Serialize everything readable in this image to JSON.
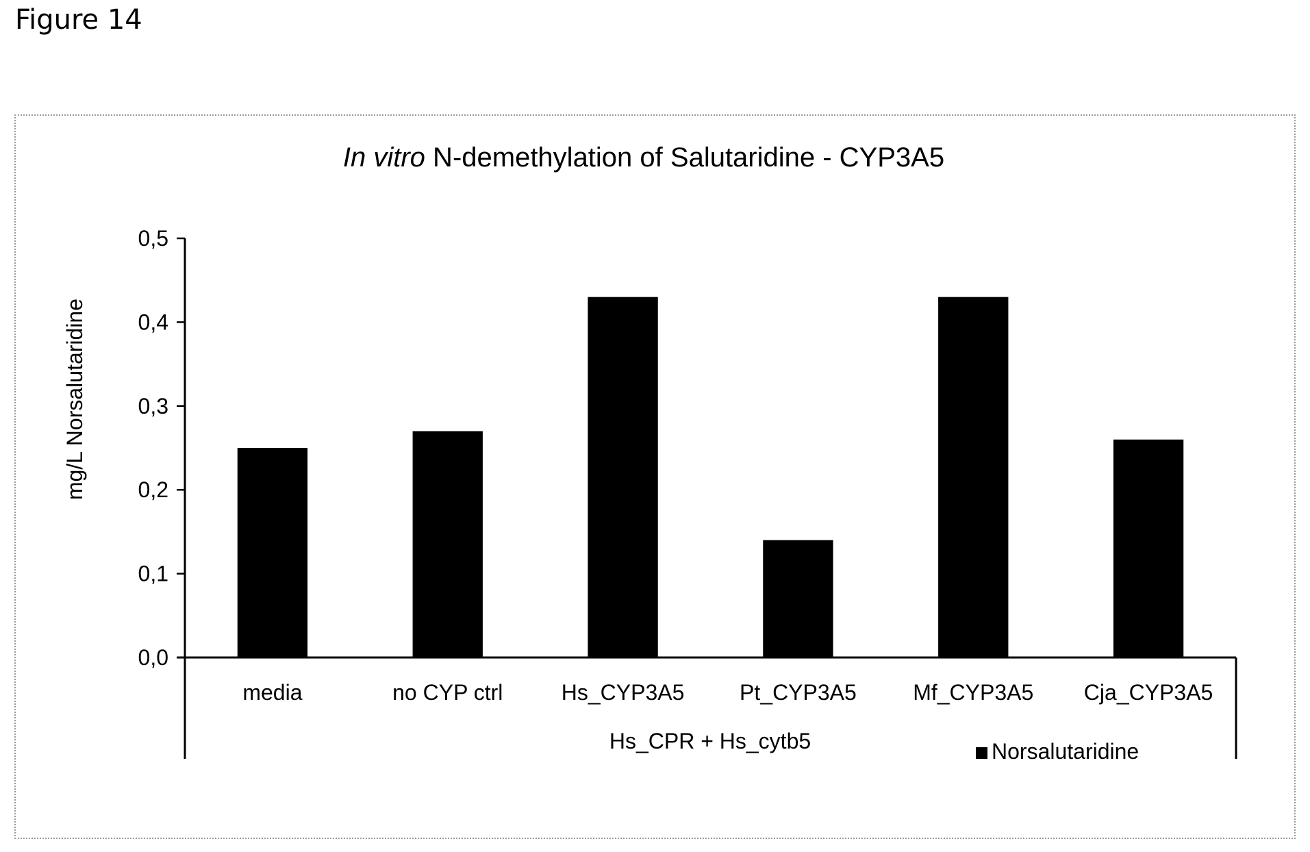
{
  "figure_label": "Figure 14",
  "chart_data": {
    "type": "bar",
    "title_italic": "In vitro",
    "title_rest": " N-demethylation of Salutaridine - CYP3A5",
    "ylabel": "mg/L Norsalutaridine",
    "xlabel": "Hs_CPR + Hs_cytb5",
    "ylim": [
      0,
      0.5
    ],
    "yticks": [
      "0,0",
      "0,1",
      "0,2",
      "0,3",
      "0,4",
      "0,5"
    ],
    "categories": [
      "media",
      "no CYP ctrl",
      "Hs_CYP3A5",
      "Pt_CYP3A5",
      "Mf_CYP3A5",
      "Cja_CYP3A5"
    ],
    "series": [
      {
        "name": "Norsalutaridine",
        "values": [
          0.25,
          0.27,
          0.43,
          0.14,
          0.43,
          0.26
        ],
        "color": "#000000"
      }
    ],
    "legend_position": "bottom-right",
    "grid": false
  }
}
